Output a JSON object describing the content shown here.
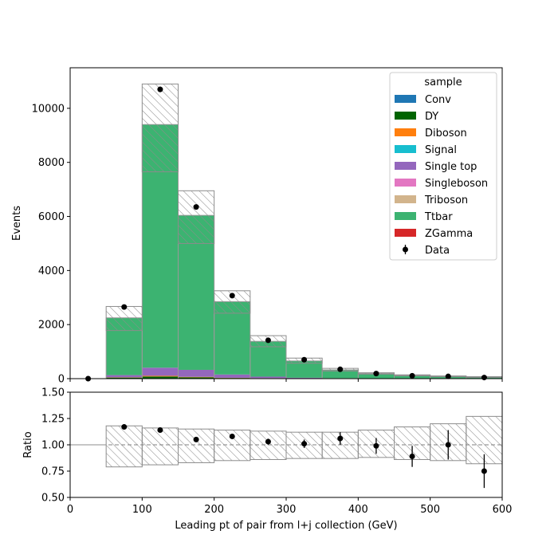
{
  "chart_data": [
    {
      "type": "bar",
      "stacked": true,
      "ylabel": "Events",
      "xlim": [
        0,
        600
      ],
      "ylim": [
        0,
        11500
      ],
      "yticks": [
        0,
        2000,
        4000,
        6000,
        8000,
        10000
      ],
      "bin_edges": [
        0,
        50,
        100,
        150,
        200,
        250,
        300,
        350,
        400,
        450,
        500,
        550,
        600
      ],
      "legend": {
        "title": "sample",
        "placement": "top-right",
        "entries": [
          {
            "name": "Conv",
            "color": "#1f77b4",
            "kind": "patch"
          },
          {
            "name": "DY",
            "color": "#006400",
            "kind": "patch"
          },
          {
            "name": "Diboson",
            "color": "#ff7f0e",
            "kind": "patch"
          },
          {
            "name": "Signal",
            "color": "#17becf",
            "kind": "patch"
          },
          {
            "name": "Single top",
            "color": "#9467bd",
            "kind": "patch"
          },
          {
            "name": "Singleboson",
            "color": "#e377c2",
            "kind": "patch"
          },
          {
            "name": "Triboson",
            "color": "#d2b48c",
            "kind": "patch"
          },
          {
            "name": "Ttbar",
            "color": "#3cb371",
            "kind": "patch"
          },
          {
            "name": "ZGamma",
            "color": "#d62728",
            "kind": "patch"
          },
          {
            "name": "Data",
            "color": "#000000",
            "kind": "errorbar"
          }
        ]
      },
      "series": [
        {
          "name": "DY",
          "values": [
            0,
            40,
            80,
            50,
            25,
            15,
            8,
            5,
            3,
            2,
            1,
            1
          ]
        },
        {
          "name": "Diboson",
          "values": [
            0,
            10,
            25,
            15,
            8,
            4,
            2,
            1,
            1,
            0,
            0,
            0
          ]
        },
        {
          "name": "Single top",
          "values": [
            0,
            80,
            300,
            260,
            120,
            55,
            25,
            12,
            6,
            3,
            2,
            1
          ]
        },
        {
          "name": "Ttbar",
          "values": [
            0,
            2120,
            8990,
            5710,
            2690,
            1306,
            620,
            305,
            180,
            115,
            80,
            55
          ]
        }
      ],
      "mc_uncertainty": {
        "total": [
          0,
          2250,
          9400,
          6040,
          2850,
          1380,
          655,
          323,
          190,
          120,
          83,
          57
        ],
        "up": [
          0,
          2670,
          10900,
          6950,
          3250,
          1590,
          760,
          380,
          218,
          141,
          100,
          73
        ],
        "down": [
          0,
          1780,
          7650,
          5000,
          2420,
          1180,
          570,
          281,
          167,
          103,
          70,
          47
        ]
      },
      "data": {
        "x": [
          25,
          75,
          125,
          175,
          225,
          275,
          325,
          375,
          425,
          475,
          525,
          575
        ],
        "y": [
          0,
          2650,
          10700,
          6350,
          3070,
          1420,
          700,
          345,
          188,
          107,
          83,
          42
        ]
      }
    },
    {
      "type": "scatter",
      "xlabel": "Leading pt of pair from l+j collection (GeV)",
      "ylabel": "Ratio",
      "xlim": [
        0,
        600
      ],
      "ylim": [
        0.5,
        1.5
      ],
      "xticks": [
        0,
        100,
        200,
        300,
        400,
        500,
        600
      ],
      "yticks": [
        "0.50",
        "0.75",
        "1.00",
        "1.25",
        "1.50"
      ],
      "reference_line": 1.0,
      "uncertainty_band": {
        "up": [
          1.0,
          1.18,
          1.16,
          1.15,
          1.14,
          1.13,
          1.12,
          1.12,
          1.14,
          1.17,
          1.2,
          1.27
        ],
        "down": [
          1.0,
          0.79,
          0.81,
          0.83,
          0.85,
          0.86,
          0.87,
          0.87,
          0.88,
          0.86,
          0.85,
          0.82
        ]
      },
      "points": {
        "x": [
          75,
          125,
          175,
          225,
          275,
          325,
          375,
          425,
          475,
          525,
          575
        ],
        "y": [
          1.17,
          1.14,
          1.05,
          1.08,
          1.03,
          1.01,
          1.06,
          0.99,
          0.89,
          1.0,
          0.75
        ],
        "err": [
          0.02,
          0.01,
          0.015,
          0.02,
          0.028,
          0.04,
          0.06,
          0.075,
          0.1,
          0.14,
          0.16
        ]
      }
    }
  ]
}
